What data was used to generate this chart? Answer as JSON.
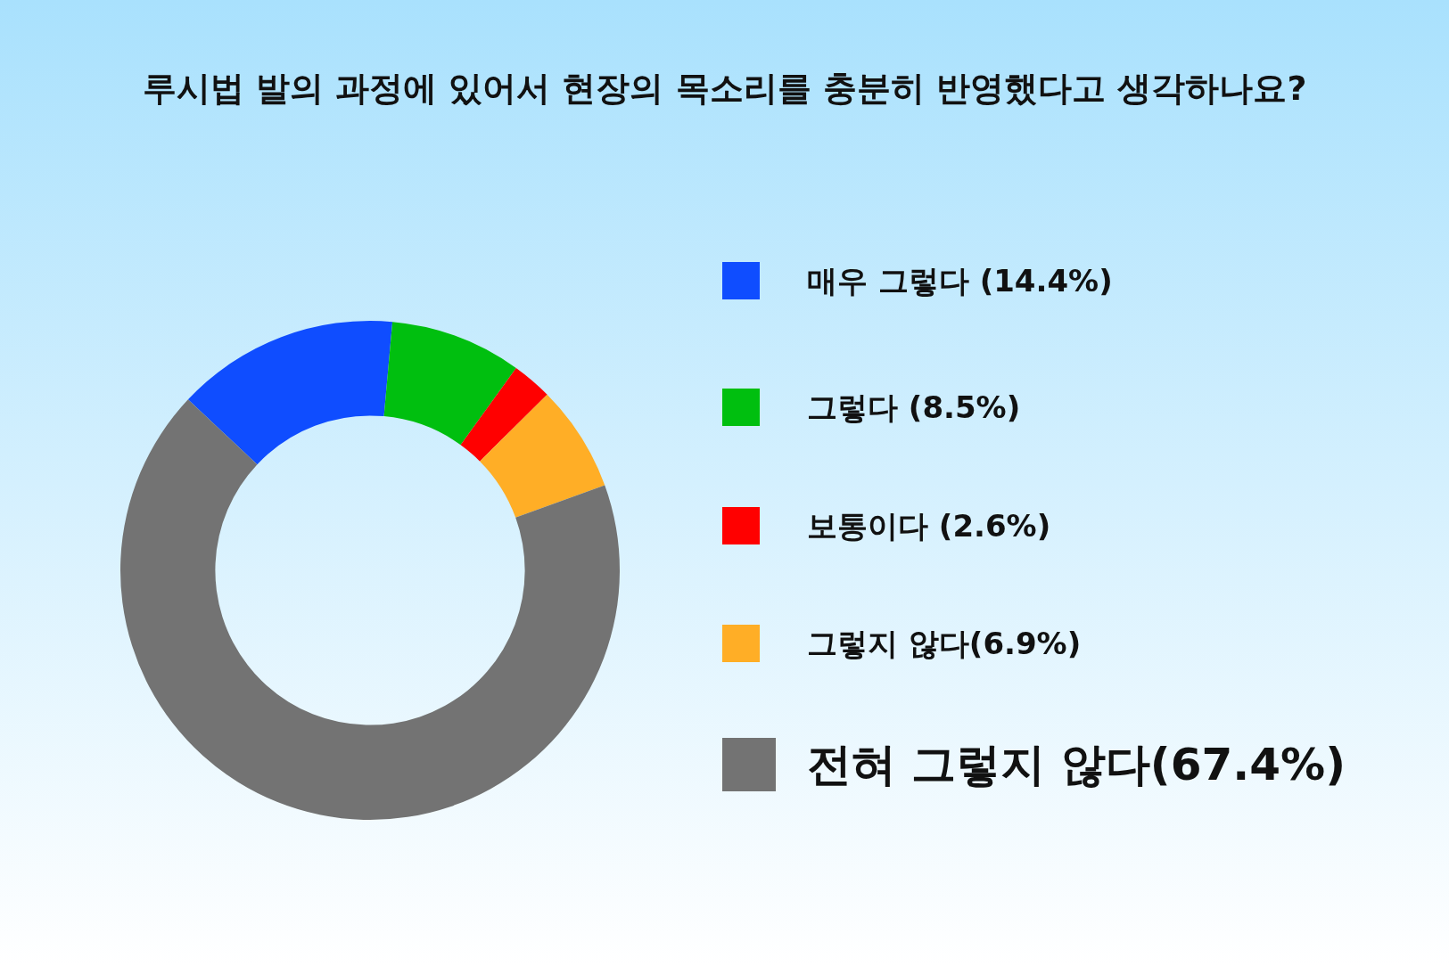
{
  "chart_data": {
    "type": "donut",
    "title": "루시법 발의 과정에 있어서 현장의 목소리를 충분히 반영했다고 생각하나요?",
    "categories": [
      "매우 그렇다 (14.4%)",
      "그렇다 (8.5%)",
      "보통이다 (2.6%)",
      "그렇지 않다(6.9%)",
      "전혀 그렇지 않다(67.4%)"
    ],
    "values": [
      14.4,
      8.5,
      2.6,
      6.9,
      67.4
    ],
    "colors": [
      "#0f4dff",
      "#00bf0f",
      "#ff0000",
      "#ffae26",
      "#737373"
    ],
    "legend": "right"
  }
}
